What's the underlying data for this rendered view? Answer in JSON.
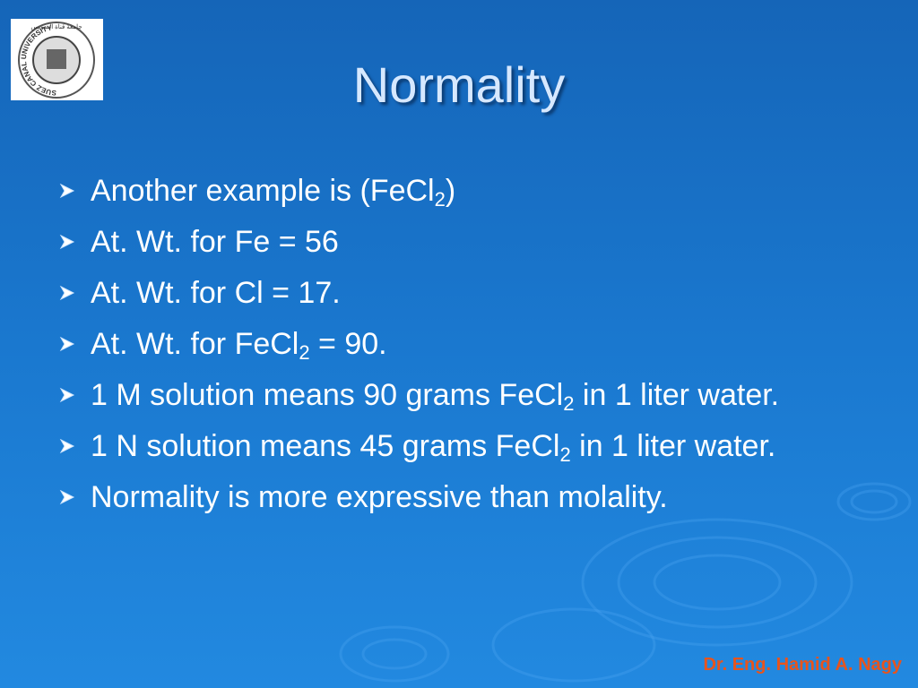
{
  "logo": {
    "text": "SUEZ CANAL UNIVERSITY",
    "arabic": "جامعة قناة السويس"
  },
  "title": "Normality",
  "bullets": [
    [
      "Another example is (FeCl",
      "2",
      ")"
    ],
    [
      "At. Wt. for Fe = 56"
    ],
    [
      "At. Wt. for Cl = 17."
    ],
    [
      "At. Wt. for FeCl",
      "2",
      " = 90."
    ],
    [
      "1 M solution means 90 grams FeCl",
      "2",
      " in 1 liter water."
    ],
    [
      "1 N solution means 45 grams FeCl",
      "2",
      " in 1 liter water."
    ],
    [
      "Normality is more expressive than molality."
    ]
  ],
  "footer": "Dr. Eng. Hamid A. Nagy"
}
